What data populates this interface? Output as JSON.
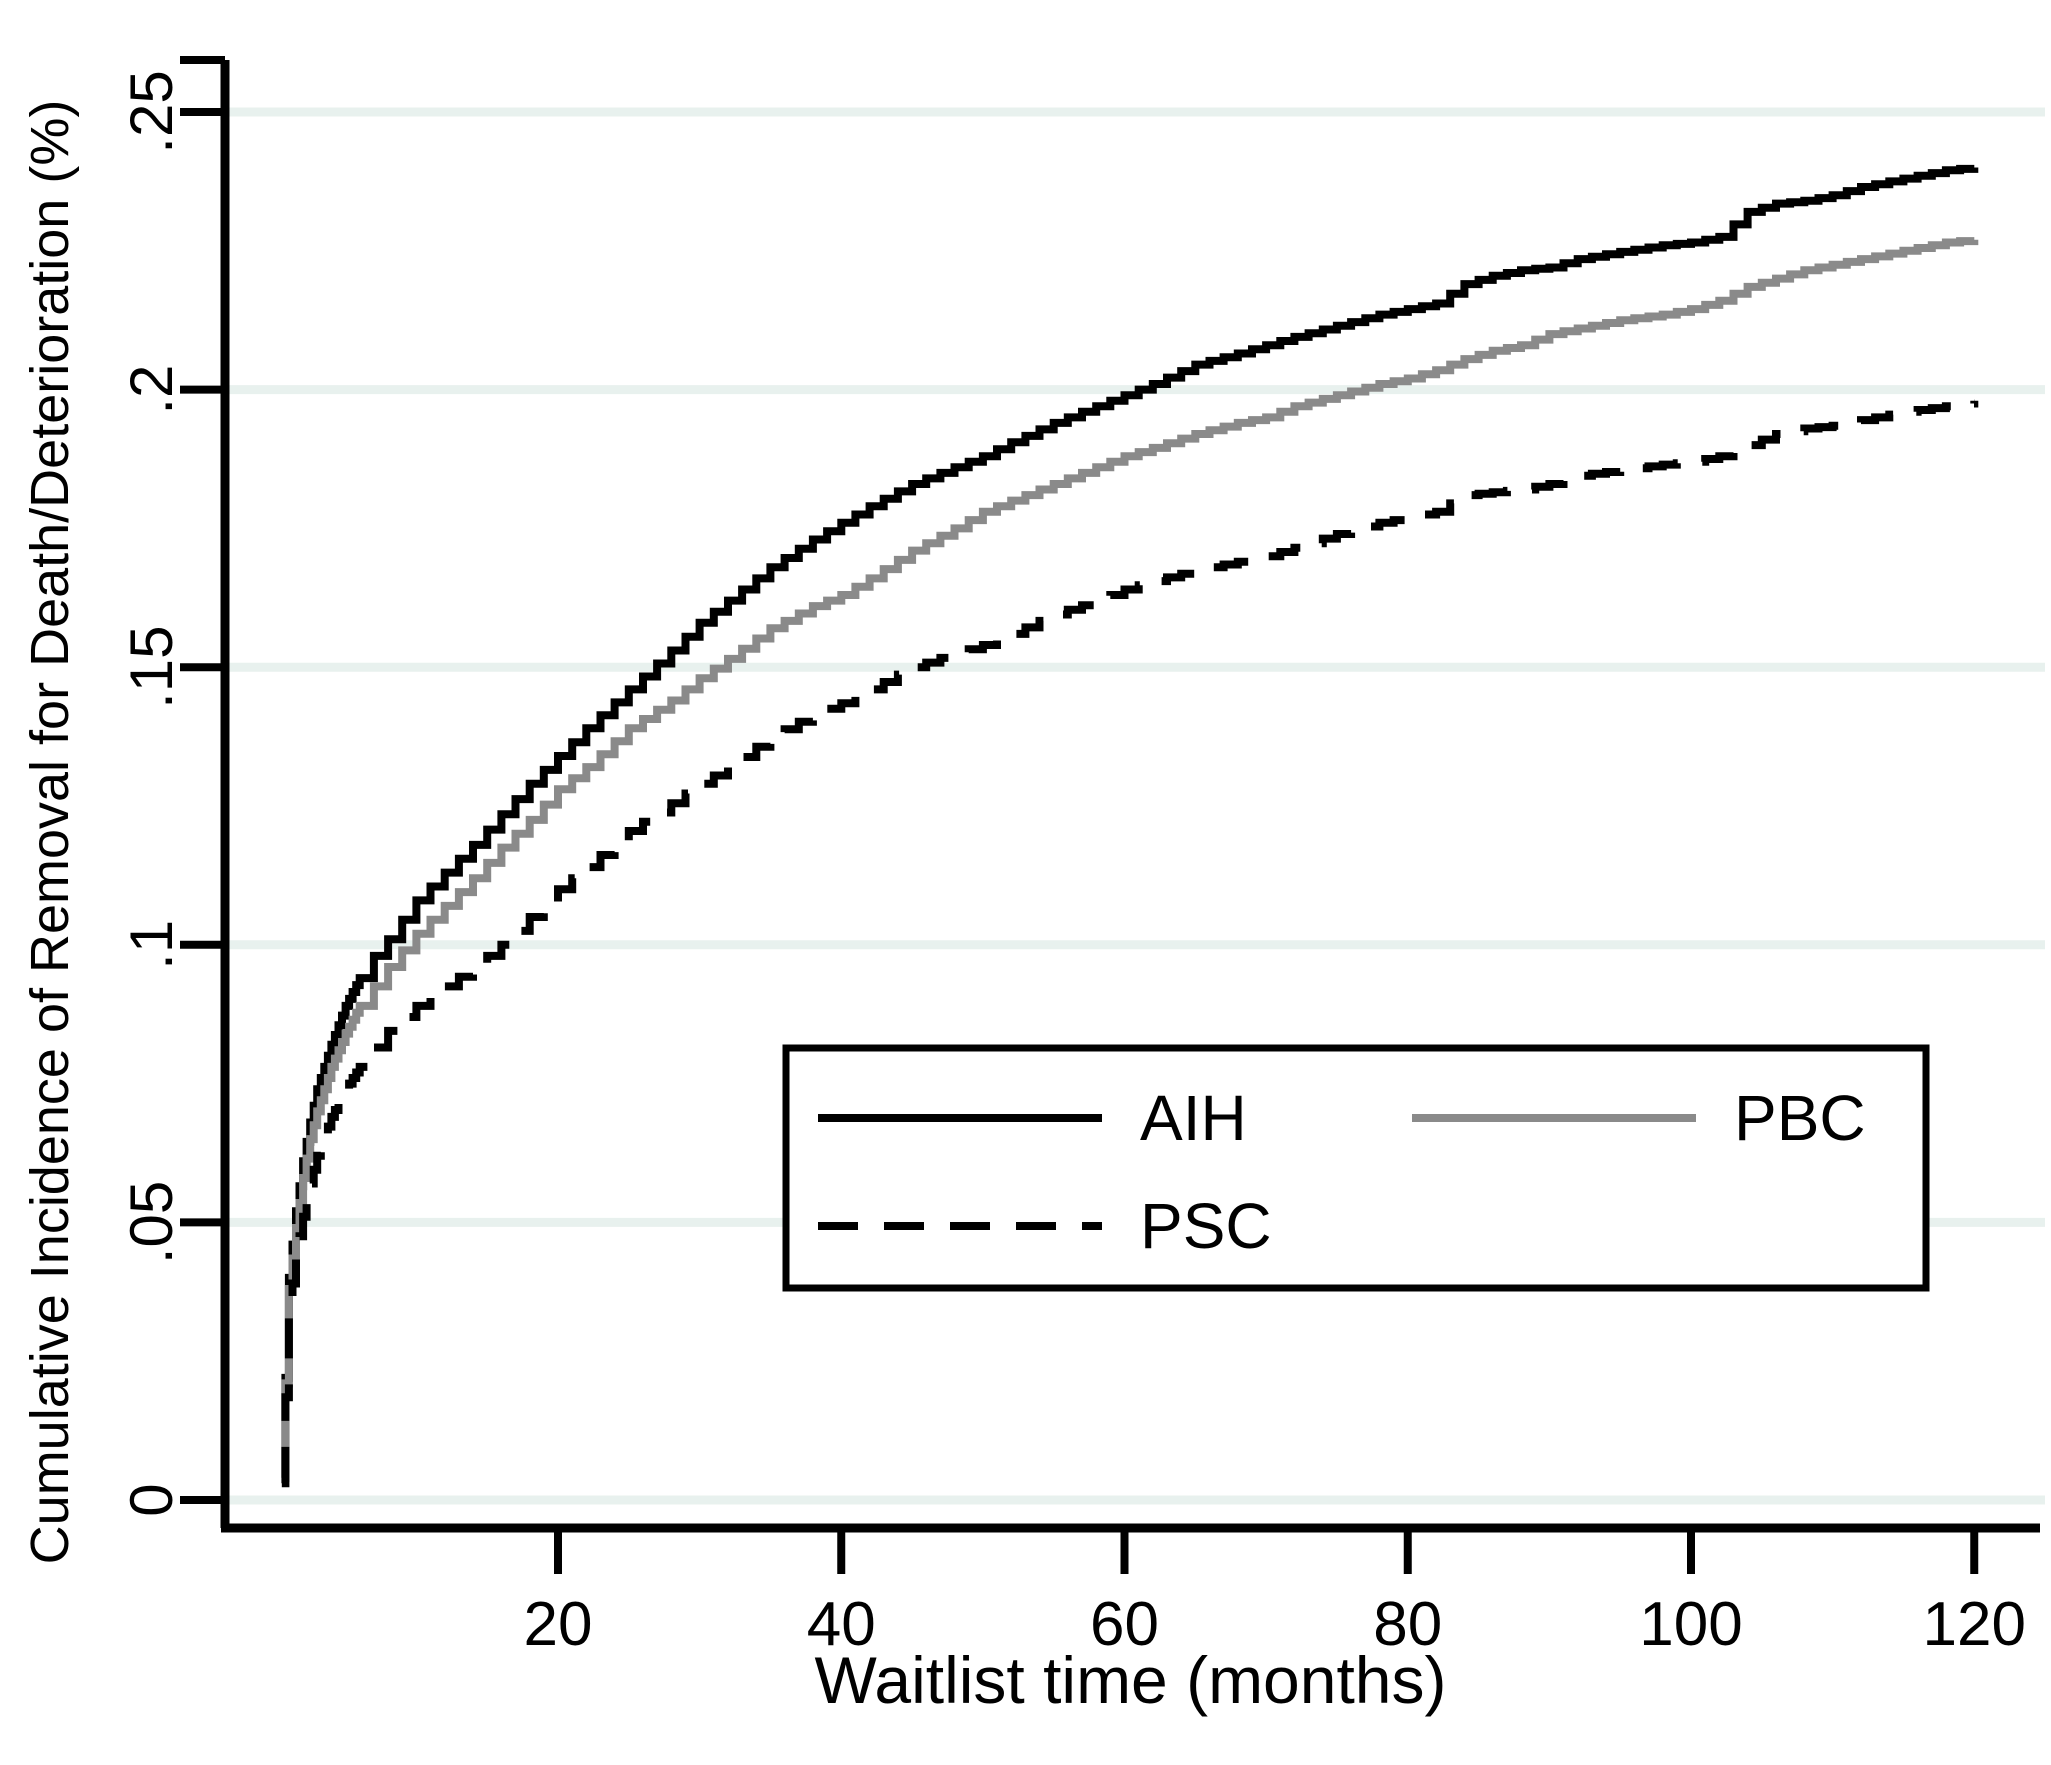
{
  "chart_data": {
    "type": "line",
    "title": "",
    "xlabel": "Waitlist time (months)",
    "ylabel": "Cumulative Incidence of Removal for Death/Deterioration (%)",
    "xlim": [
      0,
      124
    ],
    "ylim": [
      -0.005,
      0.26
    ],
    "x_ticks": [
      20,
      40,
      60,
      80,
      100,
      120
    ],
    "y_ticks": [
      {
        "v": 0,
        "label": "0"
      },
      {
        "v": 0.05,
        "label": ".05"
      },
      {
        "v": 0.1,
        "label": ".1"
      },
      {
        "v": 0.15,
        "label": ".15"
      },
      {
        "v": 0.2,
        "label": ".2"
      },
      {
        "v": 0.25,
        "label": ".25"
      }
    ],
    "grid": "horizontal",
    "grid_color": "#e8f1ee",
    "background_color": "#ffffff",
    "axis_color": "#000000",
    "legend_position": "inside-lower-right-box",
    "legend": [
      "AIH",
      "PBC",
      "PSC"
    ],
    "series": [
      {
        "name": "AIH",
        "color": "#000000",
        "dash": "solid",
        "points": [
          [
            0.5,
            0.004
          ],
          [
            1,
            0.04
          ],
          [
            1.5,
            0.052
          ],
          [
            2,
            0.061
          ],
          [
            2.5,
            0.068
          ],
          [
            3,
            0.074
          ],
          [
            4,
            0.082
          ],
          [
            5,
            0.089
          ],
          [
            6,
            0.094
          ],
          [
            7,
            0.098
          ],
          [
            8,
            0.101
          ],
          [
            9,
            0.1045
          ],
          [
            10,
            0.108
          ],
          [
            12,
            0.113
          ],
          [
            14,
            0.118
          ],
          [
            16,
            0.1235
          ],
          [
            18,
            0.129
          ],
          [
            20,
            0.134
          ],
          [
            22,
            0.139
          ],
          [
            25,
            0.146
          ],
          [
            28,
            0.153
          ],
          [
            30,
            0.158
          ],
          [
            32,
            0.162
          ],
          [
            35,
            0.168
          ],
          [
            38,
            0.173
          ],
          [
            40,
            0.176
          ],
          [
            42,
            0.179
          ],
          [
            45,
            0.183
          ],
          [
            48,
            0.186
          ],
          [
            50,
            0.188
          ],
          [
            52,
            0.1905
          ],
          [
            55,
            0.194
          ],
          [
            58,
            0.197
          ],
          [
            60,
            0.199
          ],
          [
            62,
            0.201
          ],
          [
            65,
            0.2045
          ],
          [
            68,
            0.2065
          ],
          [
            70,
            0.208
          ],
          [
            72,
            0.2095
          ],
          [
            75,
            0.2115
          ],
          [
            78,
            0.2135
          ],
          [
            80,
            0.2145
          ],
          [
            82,
            0.2155
          ],
          [
            84,
            0.219
          ],
          [
            86,
            0.2205
          ],
          [
            88,
            0.2215
          ],
          [
            90,
            0.222
          ],
          [
            92,
            0.2235
          ],
          [
            95,
            0.2248
          ],
          [
            98,
            0.226
          ],
          [
            100,
            0.2265
          ],
          [
            102,
            0.2275
          ],
          [
            104,
            0.232
          ],
          [
            106,
            0.2335
          ],
          [
            108,
            0.234
          ],
          [
            110,
            0.235
          ],
          [
            112,
            0.2365
          ],
          [
            115,
            0.238
          ],
          [
            118,
            0.2395
          ],
          [
            120,
            0.24
          ]
        ]
      },
      {
        "name": "PBC",
        "color": "#8a8a8a",
        "dash": "solid",
        "points": [
          [
            0.5,
            0.004
          ],
          [
            1,
            0.038
          ],
          [
            1.5,
            0.049
          ],
          [
            2,
            0.058
          ],
          [
            2.5,
            0.065
          ],
          [
            3,
            0.07
          ],
          [
            4,
            0.078
          ],
          [
            5,
            0.084
          ],
          [
            6,
            0.089
          ],
          [
            7,
            0.0925
          ],
          [
            8,
            0.096
          ],
          [
            9,
            0.099
          ],
          [
            10,
            0.102
          ],
          [
            12,
            0.107
          ],
          [
            14,
            0.112
          ],
          [
            16,
            0.1175
          ],
          [
            18,
            0.1225
          ],
          [
            20,
            0.128
          ],
          [
            22,
            0.132
          ],
          [
            25,
            0.139
          ],
          [
            28,
            0.144
          ],
          [
            30,
            0.148
          ],
          [
            32,
            0.1515
          ],
          [
            35,
            0.157
          ],
          [
            38,
            0.161
          ],
          [
            40,
            0.163
          ],
          [
            42,
            0.166
          ],
          [
            45,
            0.171
          ],
          [
            48,
            0.175
          ],
          [
            50,
            0.178
          ],
          [
            52,
            0.18
          ],
          [
            55,
            0.183
          ],
          [
            58,
            0.186
          ],
          [
            60,
            0.188
          ],
          [
            62,
            0.1895
          ],
          [
            65,
            0.192
          ],
          [
            68,
            0.194
          ],
          [
            70,
            0.195
          ],
          [
            72,
            0.197
          ],
          [
            75,
            0.199
          ],
          [
            78,
            0.201
          ],
          [
            80,
            0.202
          ],
          [
            82,
            0.2035
          ],
          [
            84,
            0.2055
          ],
          [
            86,
            0.207
          ],
          [
            88,
            0.208
          ],
          [
            90,
            0.21
          ],
          [
            92,
            0.211
          ],
          [
            95,
            0.2125
          ],
          [
            98,
            0.2135
          ],
          [
            100,
            0.2145
          ],
          [
            102,
            0.216
          ],
          [
            104,
            0.2185
          ],
          [
            106,
            0.22
          ],
          [
            108,
            0.2215
          ],
          [
            110,
            0.2225
          ],
          [
            112,
            0.2235
          ],
          [
            115,
            0.225
          ],
          [
            118,
            0.2265
          ],
          [
            120,
            0.227
          ]
        ]
      },
      {
        "name": "PSC",
        "color": "#000000",
        "dash": "dashed",
        "points": [
          [
            0.5,
            0.003
          ],
          [
            1,
            0.034
          ],
          [
            1.5,
            0.044
          ],
          [
            2,
            0.051
          ],
          [
            2.5,
            0.057
          ],
          [
            3,
            0.062
          ],
          [
            4,
            0.069
          ],
          [
            5,
            0.074
          ],
          [
            6,
            0.078
          ],
          [
            7,
            0.0815
          ],
          [
            8,
            0.0845
          ],
          [
            9,
            0.087
          ],
          [
            10,
            0.089
          ],
          [
            12,
            0.0925
          ],
          [
            14,
            0.096
          ],
          [
            16,
            0.1
          ],
          [
            18,
            0.105
          ],
          [
            20,
            0.11
          ],
          [
            22,
            0.114
          ],
          [
            25,
            0.1205
          ],
          [
            28,
            0.1255
          ],
          [
            30,
            0.129
          ],
          [
            32,
            0.132
          ],
          [
            35,
            0.1375
          ],
          [
            38,
            0.1415
          ],
          [
            40,
            0.1435
          ],
          [
            42,
            0.146
          ],
          [
            45,
            0.15
          ],
          [
            48,
            0.1525
          ],
          [
            50,
            0.154
          ],
          [
            52,
            0.156
          ],
          [
            55,
            0.1595
          ],
          [
            58,
            0.162
          ],
          [
            60,
            0.164
          ],
          [
            62,
            0.1655
          ],
          [
            65,
            0.1675
          ],
          [
            68,
            0.169
          ],
          [
            70,
            0.17
          ],
          [
            72,
            0.1715
          ],
          [
            75,
            0.174
          ],
          [
            78,
            0.176
          ],
          [
            80,
            0.177
          ],
          [
            82,
            0.178
          ],
          [
            84,
            0.181
          ],
          [
            86,
            0.1815
          ],
          [
            88,
            0.182
          ],
          [
            90,
            0.183
          ],
          [
            92,
            0.1845
          ],
          [
            95,
            0.1855
          ],
          [
            98,
            0.1865
          ],
          [
            100,
            0.187
          ],
          [
            102,
            0.188
          ],
          [
            104,
            0.19
          ],
          [
            106,
            0.192
          ],
          [
            108,
            0.193
          ],
          [
            110,
            0.1935
          ],
          [
            112,
            0.1945
          ],
          [
            115,
            0.196
          ],
          [
            118,
            0.197
          ],
          [
            120,
            0.198
          ]
        ]
      }
    ]
  }
}
